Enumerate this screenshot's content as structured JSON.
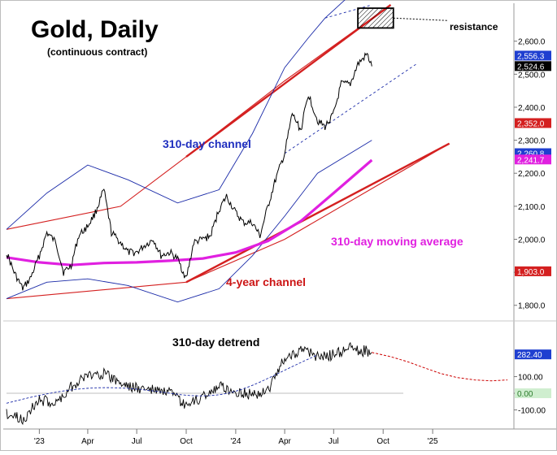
{
  "chart_data": {
    "type": "line",
    "title": "Gold, Daily",
    "subtitle": "(continuous contract)",
    "annotations": {
      "channel_310": "310-day channel",
      "moving_average": "310-day moving average",
      "channel_4yr": "4-year channel",
      "detrend": "310-day detrend",
      "resistance": "resistance"
    },
    "x_tick_labels": [
      "'23",
      "Apr",
      "Jul",
      "Oct",
      "'24",
      "Apr",
      "Jul",
      "Oct",
      "'25"
    ],
    "upper_panel": {
      "ylim": [
        1760,
        2710
      ],
      "y_tick_labels": [
        "1,800.0",
        "1,900.0",
        "2,000.0",
        "2,100.0",
        "2,200.0",
        "2,300.0",
        "2,400.0",
        "2,500.0",
        "2,600.0"
      ],
      "y_ticks": [
        1800,
        1900,
        2000,
        2100,
        2200,
        2300,
        2400,
        2500,
        2600
      ],
      "value_tags": [
        {
          "label": "2,556.3",
          "value": 2556.3,
          "color": "#1f3fd0"
        },
        {
          "label": "2,524.6",
          "value": 2524.6,
          "color": "#000000"
        },
        {
          "label": "2,352.0",
          "value": 2352.0,
          "color": "#d42020"
        },
        {
          "label": "2,260.8",
          "value": 2260.8,
          "color": "#1f3fd0"
        },
        {
          "label": "2,241.7",
          "value": 2241.7,
          "color": "#e020e0"
        },
        {
          "label": "1,903.0",
          "value": 1903.0,
          "color": "#d42020"
        }
      ],
      "price_series": {
        "name": "Gold",
        "color": "#000000",
        "x": [
          "2022-11-01",
          "2022-11-15",
          "2022-12-01",
          "2022-12-15",
          "2023-01-01",
          "2023-01-15",
          "2023-02-01",
          "2023-02-15",
          "2023-03-01",
          "2023-03-15",
          "2023-04-01",
          "2023-04-15",
          "2023-05-01",
          "2023-05-15",
          "2023-06-01",
          "2023-06-15",
          "2023-07-01",
          "2023-07-15",
          "2023-08-01",
          "2023-08-15",
          "2023-09-01",
          "2023-09-15",
          "2023-10-01",
          "2023-10-15",
          "2023-11-01",
          "2023-11-15",
          "2023-12-01",
          "2023-12-15",
          "2024-01-01",
          "2024-01-15",
          "2024-02-01",
          "2024-02-15",
          "2024-03-01",
          "2024-03-15",
          "2024-04-01",
          "2024-04-15",
          "2024-05-01",
          "2024-05-15",
          "2024-06-01",
          "2024-06-15",
          "2024-07-01",
          "2024-07-15",
          "2024-08-01",
          "2024-08-15",
          "2024-09-01",
          "2024-09-10"
        ],
        "y": [
          1960,
          1900,
          1850,
          1880,
          1950,
          2020,
          1990,
          1900,
          1920,
          2010,
          2040,
          2080,
          2150,
          2020,
          1990,
          1960,
          1960,
          1980,
          2000,
          1950,
          1960,
          1940,
          1880,
          1990,
          2000,
          2010,
          2090,
          2130,
          2080,
          2050,
          2050,
          2010,
          2100,
          2180,
          2260,
          2380,
          2330,
          2440,
          2360,
          2340,
          2380,
          2470,
          2470,
          2530,
          2560,
          2524
        ]
      },
      "moving_average": {
        "name": "310-day moving average",
        "color": "#e020e0",
        "x": [
          "2022-11-01",
          "2023-01-01",
          "2023-03-01",
          "2023-05-01",
          "2023-07-01",
          "2023-09-01",
          "2023-11-01",
          "2024-01-01",
          "2024-03-01",
          "2024-05-01",
          "2024-07-01",
          "2024-09-10"
        ],
        "y": [
          1945,
          1930,
          1922,
          1928,
          1930,
          1935,
          1942,
          1960,
          1995,
          2055,
          2140,
          2240
        ]
      },
      "channel_310_upper": {
        "x": [
          "2022-11-01",
          "2023-01-15",
          "2023-04-01",
          "2023-06-15",
          "2023-09-15",
          "2023-12-01",
          "2024-02-01",
          "2024-04-01",
          "2024-05-15",
          "2024-06-15",
          "2024-09-10"
        ],
        "y": [
          2030,
          2140,
          2225,
          2180,
          2110,
          2150,
          2320,
          2520,
          2610,
          2670,
          2800
        ]
      },
      "channel_310_lower": {
        "x": [
          "2022-11-01",
          "2023-01-15",
          "2023-04-01",
          "2023-06-15",
          "2023-09-15",
          "2023-12-01",
          "2024-02-01",
          "2024-04-01",
          "2024-06-01",
          "2024-09-10"
        ],
        "y": [
          1820,
          1870,
          1880,
          1860,
          1810,
          1850,
          1950,
          2070,
          2200,
          2300
        ]
      },
      "channel_4yr_upper": {
        "x": [
          "2022-11-01",
          "2023-06-01",
          "2023-10-01",
          "2024-04-01",
          "2024-10-15"
        ],
        "y": [
          2030,
          2100,
          2250,
          2480,
          2710
        ]
      },
      "channel_4yr_lower": {
        "x": [
          "2022-11-01",
          "2023-10-01",
          "2024-04-01",
          "2025-02-01"
        ],
        "y": [
          1820,
          1870,
          2000,
          2290
        ]
      },
      "resistance_zone": {
        "x_start": "2024-08-15",
        "x_end": "2024-10-20",
        "y_low": 2640,
        "y_high": 2700
      }
    },
    "lower_panel": {
      "ylim": [
        -200,
        420
      ],
      "y_tick_labels": [
        "100.00",
        "0.00",
        "-100.00"
      ],
      "y_ticks": [
        100,
        0,
        -100
      ],
      "value_tags": [
        {
          "label": "282.40",
          "value": 282.4,
          "color": "#1f3fd0"
        }
      ],
      "detrend_series": {
        "name": "310-day detrend",
        "color": "#000000",
        "x": [
          "2022-11-01",
          "2022-12-01",
          "2023-01-01",
          "2023-02-01",
          "2023-03-01",
          "2023-04-01",
          "2023-05-01",
          "2023-06-01",
          "2023-07-01",
          "2023-08-01",
          "2023-09-01",
          "2023-10-01",
          "2023-11-01",
          "2023-12-01",
          "2024-01-01",
          "2024-02-01",
          "2024-03-01",
          "2024-04-01",
          "2024-05-01",
          "2024-06-01",
          "2024-07-01",
          "2024-08-01",
          "2024-09-10"
        ],
        "y": [
          -120,
          -160,
          -40,
          -60,
          40,
          110,
          120,
          60,
          30,
          20,
          0,
          -80,
          -20,
          40,
          10,
          -10,
          20,
          210,
          260,
          220,
          230,
          270,
          245
        ]
      },
      "projection": {
        "name": "projection",
        "color": "#cc0000",
        "x": [
          "2024-09-10",
          "2024-10-15",
          "2024-11-15",
          "2024-12-15",
          "2025-01-15",
          "2025-02-15",
          "2025-03-20",
          "2025-04-20",
          "2025-05-20"
        ],
        "y": [
          245,
          220,
          190,
          155,
          120,
          95,
          80,
          75,
          80
        ]
      }
    }
  }
}
